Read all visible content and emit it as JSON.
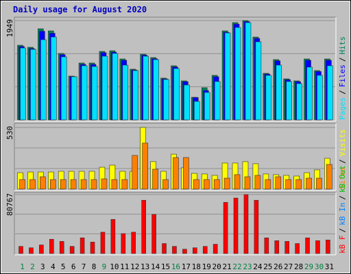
{
  "chart_data": [
    {
      "type": "bar",
      "title": "Daily usage for August 2020",
      "categories": [
        "1",
        "2",
        "3",
        "4",
        "5",
        "6",
        "7",
        "8",
        "9",
        "10",
        "11",
        "12",
        "13",
        "14",
        "15",
        "16",
        "17",
        "18",
        "19",
        "20",
        "21",
        "22",
        "23",
        "24",
        "25",
        "26",
        "27",
        "28",
        "29",
        "30",
        "31"
      ],
      "category_colors": [
        "#008040",
        "#008040",
        "#000000",
        "#000000",
        "#000000",
        "#000000",
        "#000000",
        "#000000",
        "#008040",
        "#000000",
        "#000000",
        "#000000",
        "#000000",
        "#000000",
        "#000000",
        "#008040",
        "#000000",
        "#000000",
        "#000000",
        "#000000",
        "#000000",
        "#008040",
        "#008040",
        "#000000",
        "#000000",
        "#000000",
        "#000000",
        "#000000",
        "#008040",
        "#008040",
        "#000000"
      ],
      "legend_separator": "/",
      "ylim": [
        0,
        1949
      ],
      "yticks": [
        1949
      ],
      "series": [
        {
          "name": "Pages",
          "color": "#00e0ff",
          "values": [
            1411,
            1384,
            1573,
            1626,
            1237,
            847,
            1062,
            1048,
            1250,
            1304,
            1075,
            968,
            1250,
            1183,
            793,
            1008,
            685,
            363,
            538,
            753,
            1707,
            1814,
            1909,
            1532,
            874,
            1075,
            753,
            712,
            1035,
            874,
            1062
          ]
        },
        {
          "name": "Files",
          "color": "#0000ff",
          "values": [
            1440,
            1400,
            1740,
            1700,
            1280,
            850,
            1090,
            1090,
            1320,
            1330,
            1170,
            980,
            1270,
            1200,
            805,
            1040,
            750,
            440,
            578,
            847,
            1720,
            1880,
            1930,
            1600,
            900,
            1160,
            790,
            750,
            1170,
            950,
            1170
          ]
        },
        {
          "name": "Hits",
          "color": "#00805c",
          "values": [
            1465,
            1425,
            1788,
            1747,
            1304,
            860,
            1116,
            1116,
            1344,
            1357,
            1196,
            995,
            1290,
            1223,
            820,
            1062,
            766,
            444,
            632,
            874,
            1747,
            1909,
            1949,
            1626,
            914,
            1183,
            806,
            766,
            1196,
            968,
            1196
          ]
        }
      ]
    },
    {
      "type": "bar",
      "legend_separator": "/",
      "ylim": [
        0,
        530
      ],
      "yticks": [
        530
      ],
      "series": [
        {
          "name": "Sites",
          "color": "#ff8000",
          "values": [
            82,
            82,
            106,
            82,
            82,
            82,
            82,
            82,
            88,
            82,
            82,
            289,
            395,
            171,
            82,
            271,
            271,
            82,
            82,
            82,
            94,
            124,
            106,
            118,
            82,
            106,
            82,
            82,
            94,
            94,
            212
          ]
        },
        {
          "name": "Visits",
          "color": "#ffff00",
          "values": [
            141,
            147,
            147,
            147,
            153,
            153,
            153,
            153,
            188,
            206,
            153,
            153,
            530,
            236,
            153,
            300,
            183,
            135,
            130,
            118,
            224,
            224,
            236,
            218,
            130,
            124,
            118,
            112,
            141,
            165,
            265
          ]
        }
      ]
    },
    {
      "type": "bar",
      "legend_separator": "/",
      "ylim": [
        0,
        80767
      ],
      "yticks": [
        80767
      ],
      "series": [
        {
          "name": "kB F",
          "color": "#ff0000",
          "values": [
            9730,
            7784,
            11676,
            19460,
            16541,
            9730,
            21406,
            15568,
            29190,
            46704,
            27244,
            29190,
            72975,
            53515,
            13622,
            9730,
            5838,
            7784,
            9730,
            12649,
            70056,
            76000,
            80767,
            72975,
            21406,
            17514,
            16541,
            13622,
            21406,
            17514,
            18487
          ]
        },
        {
          "name": "kB In",
          "color": "#0080ff"
        },
        {
          "name": "kB Out",
          "color": "#00c000"
        }
      ]
    }
  ]
}
